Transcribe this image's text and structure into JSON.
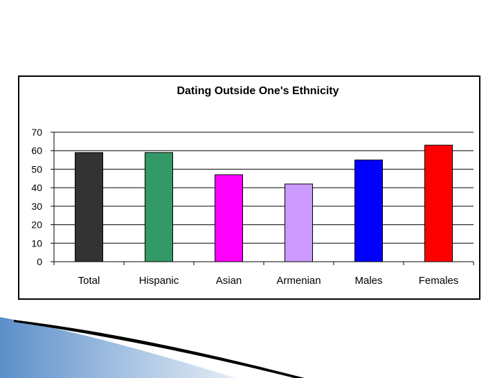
{
  "chart_data": {
    "type": "bar",
    "title": "Dating Outside One's Ethnicity",
    "xlabel": "",
    "ylabel": "",
    "categories": [
      "Total",
      "Hispanic",
      "Asian",
      "Armenian",
      "Males",
      "Females"
    ],
    "values": [
      59,
      59,
      47,
      42,
      55,
      63
    ],
    "colors": [
      "#333333",
      "#339966",
      "#ff00ff",
      "#cc99ff",
      "#0000ff",
      "#ff0000"
    ],
    "ylim": [
      0,
      70
    ],
    "yticks": [
      0,
      10,
      20,
      30,
      40,
      50,
      60,
      70
    ],
    "grid": "horizontal",
    "legend": "none"
  }
}
